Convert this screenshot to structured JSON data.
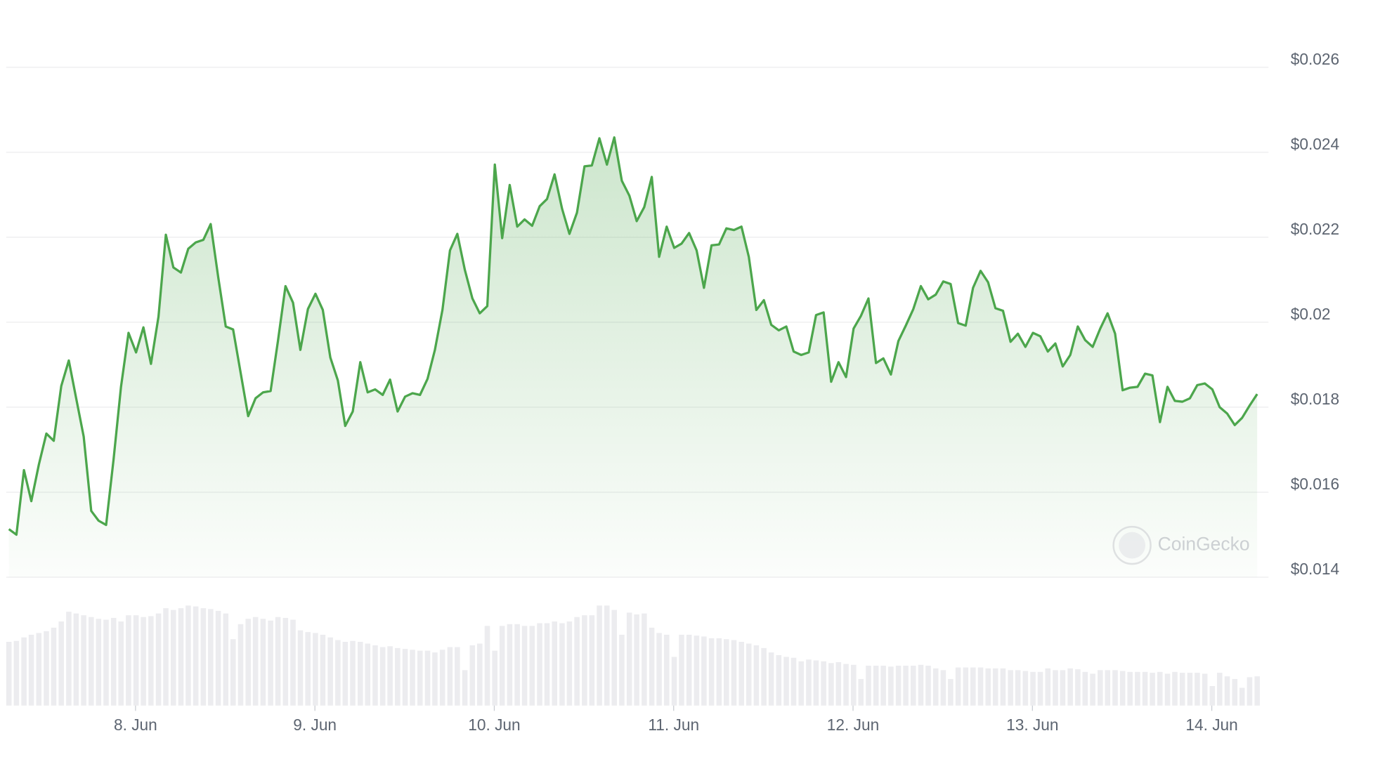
{
  "chart_data": {
    "type": "area",
    "watermark": "CoinGecko",
    "color": "#4ca64c",
    "volume_color": "#ececef",
    "grid": true,
    "xlim": [
      7.279,
      14.316
    ],
    "ylim": [
      0.014,
      0.026
    ],
    "y2lim": [
      0,
      140
    ],
    "yticks": [
      {
        "value": 0.014,
        "label": "$0.014"
      },
      {
        "value": 0.016,
        "label": "$0.016"
      },
      {
        "value": 0.018,
        "label": "$0.018"
      },
      {
        "value": 0.02,
        "label": "$0.02"
      },
      {
        "value": 0.022,
        "label": "$0.022"
      },
      {
        "value": 0.024,
        "label": "$0.024"
      },
      {
        "value": 0.026,
        "label": "$0.026"
      }
    ],
    "xticks": [
      {
        "value": 8,
        "label": "8. Jun"
      },
      {
        "value": 9,
        "label": "9. Jun"
      },
      {
        "value": 10,
        "label": "10. Jun"
      },
      {
        "value": 11,
        "label": "11. Jun"
      },
      {
        "value": 12,
        "label": "12. Jun"
      },
      {
        "value": 13,
        "label": "13. Jun"
      },
      {
        "value": 14,
        "label": "14. Jun"
      }
    ],
    "x": [
      7.294,
      7.336,
      7.378,
      7.419,
      7.461,
      7.503,
      7.544,
      7.586,
      7.628,
      7.669,
      7.711,
      7.753,
      7.794,
      7.836,
      7.878,
      7.919,
      7.961,
      8.003,
      8.044,
      8.086,
      8.128,
      8.169,
      8.211,
      8.253,
      8.294,
      8.336,
      8.378,
      8.419,
      8.461,
      8.503,
      8.544,
      8.586,
      8.628,
      8.669,
      8.711,
      8.753,
      8.794,
      8.836,
      8.878,
      8.919,
      8.961,
      9.003,
      9.044,
      9.086,
      9.128,
      9.169,
      9.211,
      9.253,
      9.294,
      9.336,
      9.378,
      9.419,
      9.461,
      9.503,
      9.544,
      9.586,
      9.628,
      9.669,
      9.711,
      9.753,
      9.794,
      9.836,
      9.878,
      9.919,
      9.961,
      10.003,
      10.044,
      10.086,
      10.128,
      10.169,
      10.211,
      10.253,
      10.294,
      10.336,
      10.378,
      10.419,
      10.461,
      10.503,
      10.544,
      10.586,
      10.628,
      10.669,
      10.711,
      10.753,
      10.794,
      10.836,
      10.878,
      10.919,
      10.961,
      11.003,
      11.044,
      11.086,
      11.128,
      11.169,
      11.211,
      11.253,
      11.294,
      11.336,
      11.378,
      11.419,
      11.461,
      11.503,
      11.544,
      11.586,
      11.628,
      11.669,
      11.711,
      11.753,
      11.794,
      11.836,
      11.878,
      11.919,
      11.961,
      12.003,
      12.044,
      12.086,
      12.128,
      12.169,
      12.211,
      12.253,
      12.294,
      12.336,
      12.378,
      12.419,
      12.461,
      12.503,
      12.544,
      12.586,
      12.628,
      12.669,
      12.711,
      12.753,
      12.794,
      12.836,
      12.878,
      12.919,
      12.961,
      13.003,
      13.044,
      13.086,
      13.128,
      13.169,
      13.211,
      13.253,
      13.294,
      13.336,
      13.378,
      13.419,
      13.461,
      13.503,
      13.544,
      13.586,
      13.628,
      13.669,
      13.711,
      13.753,
      13.794,
      13.836,
      13.878,
      13.919,
      13.961,
      14.003,
      14.044,
      14.086,
      14.128,
      14.169,
      14.211,
      14.253
    ],
    "values": [
      0.01513,
      0.015,
      0.01652,
      0.01579,
      0.01665,
      0.01738,
      0.01721,
      0.0185,
      0.0191,
      0.01821,
      0.01731,
      0.01556,
      0.01533,
      0.01523,
      0.01679,
      0.01848,
      0.01975,
      0.01929,
      0.01988,
      0.01902,
      0.02013,
      0.02206,
      0.02129,
      0.02117,
      0.02173,
      0.02188,
      0.02194,
      0.02231,
      0.02106,
      0.0199,
      0.01983,
      0.01881,
      0.01779,
      0.01821,
      0.01835,
      0.01838,
      0.01956,
      0.02085,
      0.02046,
      0.01935,
      0.02031,
      0.02067,
      0.02029,
      0.01917,
      0.01863,
      0.01756,
      0.0179,
      0.01906,
      0.01835,
      0.01842,
      0.01829,
      0.01865,
      0.0179,
      0.01825,
      0.01833,
      0.01829,
      0.01867,
      0.01935,
      0.02029,
      0.02169,
      0.02208,
      0.02123,
      0.02056,
      0.02021,
      0.02038,
      0.02371,
      0.02198,
      0.02323,
      0.02225,
      0.02242,
      0.02227,
      0.02273,
      0.0229,
      0.02348,
      0.02267,
      0.02208,
      0.02258,
      0.02367,
      0.02369,
      0.02433,
      0.02371,
      0.02435,
      0.02333,
      0.02298,
      0.02238,
      0.02271,
      0.02342,
      0.02154,
      0.02225,
      0.02175,
      0.02185,
      0.0221,
      0.02169,
      0.02081,
      0.02181,
      0.02183,
      0.02221,
      0.02217,
      0.02225,
      0.02154,
      0.02029,
      0.02052,
      0.01994,
      0.01981,
      0.0199,
      0.01931,
      0.01923,
      0.01929,
      0.02017,
      0.02023,
      0.0186,
      0.01906,
      0.01871,
      0.01985,
      0.02015,
      0.02056,
      0.01904,
      0.01915,
      0.01877,
      0.01956,
      0.01992,
      0.02031,
      0.02085,
      0.02054,
      0.02065,
      0.02096,
      0.0209,
      0.01998,
      0.01992,
      0.02081,
      0.02121,
      0.02094,
      0.02033,
      0.02027,
      0.01954,
      0.01973,
      0.01942,
      0.01975,
      0.01967,
      0.01931,
      0.0195,
      0.01896,
      0.01923,
      0.0199,
      0.01958,
      0.01942,
      0.01985,
      0.02021,
      0.01973,
      0.0184,
      0.01846,
      0.01848,
      0.01879,
      0.01875,
      0.01765,
      0.01848,
      0.01815,
      0.01813,
      0.01821,
      0.01852,
      0.01856,
      0.01842,
      0.018,
      0.01785,
      0.01758,
      0.01775,
      0.01804,
      0.01831
    ],
    "volume": [
      72,
      73,
      77,
      80,
      82,
      84,
      88,
      95,
      106,
      104,
      102,
      100,
      98,
      97,
      99,
      95,
      102,
      102,
      100,
      101,
      104,
      110,
      108,
      110,
      113,
      112,
      110,
      109,
      107,
      104,
      75,
      92,
      98,
      100,
      98,
      96,
      100,
      99,
      97,
      85,
      83,
      82,
      80,
      77,
      74,
      72,
      73,
      72,
      70,
      68,
      66,
      67,
      65,
      64,
      63,
      62,
      62,
      60,
      63,
      66,
      66,
      40,
      68,
      70,
      90,
      62,
      90,
      92,
      92,
      90,
      90,
      93,
      93,
      95,
      93,
      95,
      100,
      102,
      102,
      113,
      113,
      108,
      80,
      105,
      103,
      104,
      88,
      82,
      80,
      55,
      80,
      80,
      79,
      78,
      76,
      76,
      75,
      74,
      72,
      70,
      68,
      65,
      60,
      57,
      55,
      54,
      50,
      52,
      51,
      50,
      48,
      49,
      47,
      46,
      30,
      45,
      45,
      45,
      44,
      45,
      45,
      45,
      46,
      45,
      42,
      40,
      30,
      43,
      43,
      43,
      43,
      42,
      42,
      42,
      40,
      40,
      39,
      38,
      38,
      42,
      40,
      40,
      42,
      41,
      38,
      36,
      40,
      40,
      40,
      39,
      38,
      38,
      38,
      37,
      38,
      36,
      38,
      37,
      37,
      37,
      36,
      22,
      37,
      33,
      30,
      20,
      32,
      33
    ]
  }
}
